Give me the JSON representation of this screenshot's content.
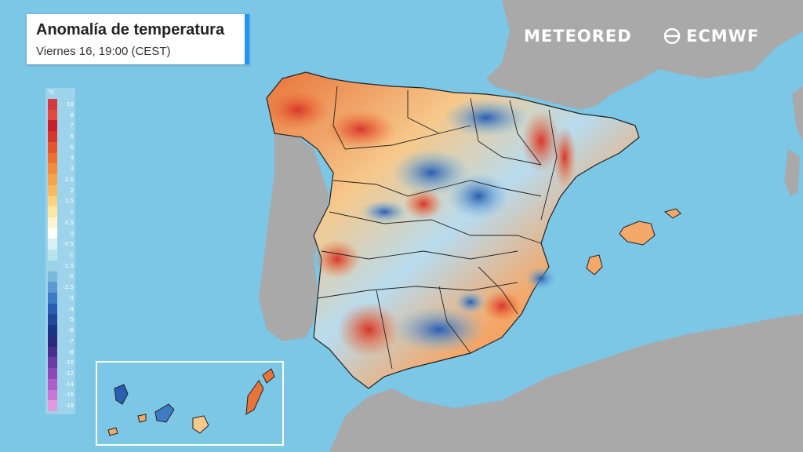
{
  "title": "Anomalía de temperatura",
  "subtitle": "Viernes 16, 19:00 (CEST)",
  "brand_left": "METEORED",
  "brand_right": "ECMWF",
  "legend": {
    "unit": "°C",
    "values": [
      "10",
      "8",
      "7",
      "6",
      "5",
      "4",
      "3",
      "2.5",
      "2",
      "1.5",
      "1",
      "0.5",
      "0",
      "-0.5",
      "-1",
      "-1.5",
      "-2",
      "-2.5",
      "-3",
      "-4",
      "-5",
      "-6",
      "-7",
      "-8",
      "-10",
      "-12",
      "-14",
      "-16",
      "-18"
    ],
    "colors": [
      "#d7373f",
      "#e34a3c",
      "#c8202a",
      "#d8362c",
      "#e5542e",
      "#ef6f31",
      "#f48b3a",
      "#f7a34d",
      "#f9bb62",
      "#fbd27d",
      "#fde7a4",
      "#fff4cf",
      "#ffffff",
      "#d9f1f3",
      "#b8e4ea",
      "#9ad2e6",
      "#7ab9de",
      "#5b9ad2",
      "#3d7bc4",
      "#2a5eb2",
      "#20489b",
      "#1b3585",
      "#2a2a7d",
      "#4a2f8f",
      "#6b3aa3",
      "#8c4ab6",
      "#ad5ec7",
      "#c977d6",
      "#e29ae0"
    ]
  },
  "colors": {
    "sea": "#7cc6e6",
    "land_gray": "#a9a9a9",
    "accent": "#2196f3"
  }
}
